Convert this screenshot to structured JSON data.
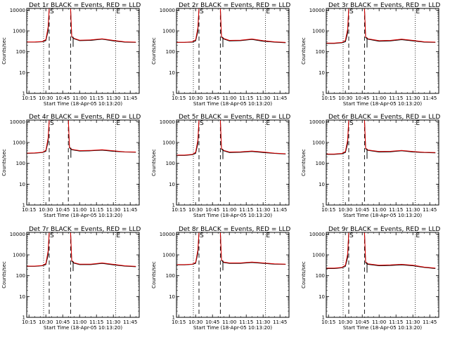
{
  "colors": {
    "events": "#000000",
    "lld": "#e00000",
    "background": "#ffffff"
  },
  "chart_data": {
    "type": "line",
    "layout": "3x3 grid of panels",
    "shared": {
      "xlabel": "Start Time (18-Apr-05 10:13:20)",
      "ylabel": "Counts/sec",
      "x_tick_labels": [
        "10:15",
        "10:30",
        "10:45",
        "11:00",
        "11:15",
        "11:30",
        "11:45"
      ],
      "y_tick_labels": [
        "1",
        "10",
        "100",
        "1000",
        "10000"
      ],
      "yscale": "log",
      "ylim": [
        1,
        12000
      ],
      "xlim": [
        "10:13",
        "11:53"
      ],
      "legend_text": "BLACK = Events, RED = LLD",
      "markers": [
        {
          "label": "S",
          "x": "10:33"
        },
        {
          "label": "E",
          "x": "11:32"
        }
      ],
      "dotted_lines_x": [
        "10:28",
        "11:32"
      ],
      "dashed_lines_x": [
        "10:33",
        "10:52"
      ]
    },
    "panels": [
      {
        "title": "Det 1r BLACK = Events, RED = LLD",
        "x": [
          "10:13",
          "10:20",
          "10:27",
          "10:30",
          "10:32",
          "10:33",
          "10:52",
          "10:53",
          "10:55",
          "11:00",
          "11:10",
          "11:20",
          "11:30",
          "11:40",
          "11:50"
        ],
        "events": [
          290,
          290,
          300,
          340,
          1000,
          12000,
          12000,
          520,
          420,
          340,
          350,
          400,
          330,
          290,
          280
        ],
        "lld": [
          295,
          295,
          310,
          380,
          1500,
          12000,
          12000,
          550,
          440,
          360,
          370,
          420,
          350,
          300,
          290
        ]
      },
      {
        "title": "Det 2r BLACK = Events, RED = LLD",
        "x": [
          "10:13",
          "10:20",
          "10:27",
          "10:30",
          "10:32",
          "10:33",
          "10:52",
          "10:53",
          "10:55",
          "11:00",
          "11:10",
          "11:20",
          "11:30",
          "11:40",
          "11:50"
        ],
        "events": [
          280,
          280,
          290,
          330,
          950,
          12000,
          12000,
          500,
          410,
          330,
          340,
          390,
          320,
          290,
          270
        ],
        "lld": [
          285,
          285,
          300,
          370,
          1400,
          12000,
          12000,
          540,
          430,
          350,
          360,
          410,
          340,
          300,
          280
        ]
      },
      {
        "title": "Det 3r BLACK = Events, RED = LLD",
        "x": [
          "10:13",
          "10:20",
          "10:27",
          "10:30",
          "10:32",
          "10:33",
          "10:47",
          "10:48",
          "10:50",
          "11:00",
          "11:10",
          "11:20",
          "11:30",
          "11:40",
          "11:50"
        ],
        "events": [
          250,
          250,
          270,
          300,
          800,
          12000,
          12000,
          480,
          400,
          320,
          330,
          380,
          330,
          290,
          280
        ],
        "lld": [
          260,
          260,
          280,
          350,
          1200,
          12000,
          12000,
          520,
          420,
          340,
          350,
          400,
          350,
          300,
          290
        ]
      },
      {
        "title": "Det 4r BLACK = Events, RED = LLD",
        "x": [
          "10:13",
          "10:20",
          "10:27",
          "10:30",
          "10:32",
          "10:33",
          "10:50",
          "10:51",
          "10:53",
          "11:00",
          "11:10",
          "11:20",
          "11:30",
          "11:40",
          "11:50"
        ],
        "events": [
          300,
          310,
          330,
          380,
          1100,
          12000,
          12000,
          560,
          450,
          390,
          400,
          430,
          380,
          350,
          340
        ],
        "lld": [
          310,
          320,
          340,
          420,
          1600,
          12000,
          12000,
          600,
          470,
          410,
          420,
          450,
          400,
          360,
          350
        ]
      },
      {
        "title": "Det 5r BLACK = Events, RED = LLD",
        "x": [
          "10:13",
          "10:20",
          "10:27",
          "10:30",
          "10:32",
          "10:33",
          "10:52",
          "10:53",
          "10:55",
          "11:00",
          "11:10",
          "11:20",
          "11:30",
          "11:40",
          "11:50"
        ],
        "events": [
          240,
          240,
          260,
          300,
          900,
          12000,
          12000,
          480,
          400,
          330,
          340,
          370,
          330,
          300,
          280
        ],
        "lld": [
          250,
          250,
          270,
          340,
          1300,
          12000,
          12000,
          520,
          420,
          350,
          360,
          390,
          350,
          310,
          290
        ]
      },
      {
        "title": "Det 6r BLACK = Events, RED = LLD",
        "x": [
          "10:13",
          "10:20",
          "10:27",
          "10:30",
          "10:32",
          "10:33",
          "10:47",
          "10:48",
          "10:50",
          "11:00",
          "11:10",
          "11:20",
          "11:30",
          "11:40",
          "11:50"
        ],
        "events": [
          270,
          270,
          290,
          330,
          900,
          12000,
          12000,
          500,
          420,
          350,
          360,
          400,
          350,
          330,
          320
        ],
        "lld": [
          280,
          280,
          300,
          370,
          1300,
          12000,
          12000,
          540,
          440,
          370,
          380,
          420,
          370,
          340,
          330
        ]
      },
      {
        "title": "Det 7r BLACK = Events, RED = LLD",
        "x": [
          "10:13",
          "10:20",
          "10:27",
          "10:30",
          "10:32",
          "10:33",
          "10:52",
          "10:53",
          "10:55",
          "11:00",
          "11:10",
          "11:20",
          "11:30",
          "11:40",
          "11:50"
        ],
        "events": [
          280,
          280,
          300,
          340,
          1000,
          12000,
          12000,
          500,
          400,
          340,
          340,
          390,
          330,
          290,
          270
        ],
        "lld": [
          290,
          290,
          310,
          380,
          1500,
          12000,
          12000,
          540,
          420,
          360,
          360,
          410,
          350,
          300,
          280
        ]
      },
      {
        "title": "Det 8r BLACK = Events, RED = LLD",
        "x": [
          "10:13",
          "10:20",
          "10:27",
          "10:30",
          "10:32",
          "10:33",
          "10:52",
          "10:53",
          "10:55",
          "11:00",
          "11:10",
          "11:20",
          "11:30",
          "11:40",
          "11:50"
        ],
        "events": [
          330,
          330,
          350,
          390,
          1200,
          12000,
          12000,
          540,
          430,
          390,
          390,
          430,
          390,
          360,
          350
        ],
        "lld": [
          340,
          340,
          360,
          430,
          1700,
          12000,
          12000,
          580,
          450,
          410,
          410,
          450,
          410,
          370,
          360
        ]
      },
      {
        "title": "Det 9r BLACK = Events, RED = LLD",
        "x": [
          "10:13",
          "10:20",
          "10:27",
          "10:30",
          "10:32",
          "10:33",
          "10:47",
          "10:48",
          "10:50",
          "11:00",
          "11:10",
          "11:20",
          "11:30",
          "11:40",
          "11:50"
        ],
        "events": [
          220,
          220,
          240,
          280,
          750,
          12000,
          12000,
          420,
          350,
          300,
          310,
          330,
          300,
          250,
          220
        ],
        "lld": [
          230,
          230,
          250,
          320,
          1100,
          12000,
          12000,
          460,
          370,
          320,
          330,
          350,
          320,
          260,
          230
        ]
      }
    ]
  }
}
